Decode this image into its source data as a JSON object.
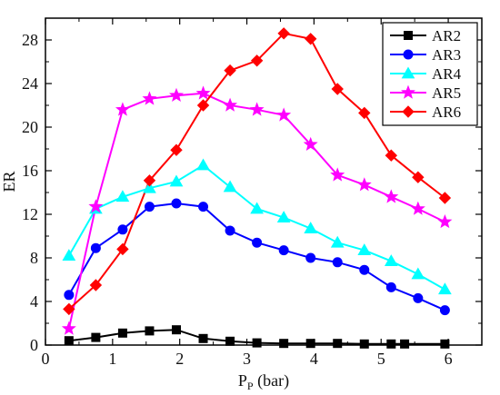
{
  "chart_data": {
    "type": "line",
    "title": "",
    "xlabel": "P",
    "xlabel_subscript": "P",
    "xlabel_unit": " (bar)",
    "ylabel": "ER",
    "xlim": [
      0,
      6.5
    ],
    "ylim": [
      0,
      30
    ],
    "x_ticks": [
      0,
      1,
      2,
      3,
      4,
      5,
      6
    ],
    "y_ticks": [
      0,
      4,
      8,
      12,
      16,
      20,
      24,
      28
    ],
    "grid": false,
    "legend_position": "top-right",
    "series": [
      {
        "name": "AR2",
        "color": "#000000",
        "marker": "square",
        "x": [
          0.35,
          0.75,
          1.15,
          1.55,
          1.95,
          2.35,
          2.75,
          3.15,
          3.55,
          3.95,
          4.35,
          4.75,
          5.15,
          5.35,
          5.95
        ],
        "y": [
          0.4,
          0.7,
          1.1,
          1.3,
          1.4,
          0.6,
          0.35,
          0.2,
          0.15,
          0.15,
          0.15,
          0.1,
          0.1,
          0.1,
          0.1
        ]
      },
      {
        "name": "AR3",
        "color": "#0000ff",
        "marker": "circle",
        "x": [
          0.35,
          0.75,
          1.15,
          1.55,
          1.95,
          2.35,
          2.75,
          3.15,
          3.55,
          3.95,
          4.35,
          4.75,
          5.15,
          5.55,
          5.95
        ],
        "y": [
          4.6,
          8.9,
          10.6,
          12.7,
          13.0,
          12.7,
          10.5,
          9.4,
          8.7,
          8.0,
          7.6,
          6.9,
          5.3,
          4.3,
          3.2
        ]
      },
      {
        "name": "AR4",
        "color": "#00ffff",
        "marker": "triangle",
        "x": [
          0.35,
          0.75,
          1.15,
          1.55,
          1.95,
          2.35,
          2.75,
          3.15,
          3.55,
          3.95,
          4.35,
          4.75,
          5.15,
          5.55,
          5.95
        ],
        "y": [
          8.2,
          12.5,
          13.6,
          14.4,
          15.0,
          16.5,
          14.5,
          12.5,
          11.7,
          10.7,
          9.4,
          8.7,
          7.7,
          6.5,
          5.1
        ]
      },
      {
        "name": "AR5",
        "color": "#ff00ff",
        "marker": "star",
        "x": [
          0.35,
          0.75,
          1.15,
          1.55,
          1.95,
          2.35,
          2.75,
          3.15,
          3.55,
          3.95,
          4.35,
          4.75,
          5.15,
          5.55,
          5.95
        ],
        "y": [
          1.5,
          12.7,
          21.6,
          22.6,
          22.9,
          23.1,
          22.0,
          21.6,
          21.1,
          18.4,
          15.6,
          14.7,
          13.6,
          12.5,
          11.3
        ]
      },
      {
        "name": "AR6",
        "color": "#ff0000",
        "marker": "diamond",
        "x": [
          0.35,
          0.75,
          1.15,
          1.55,
          1.95,
          2.35,
          2.75,
          3.15,
          3.55,
          3.95,
          4.35,
          4.75,
          5.15,
          5.55,
          5.95
        ],
        "y": [
          3.3,
          5.5,
          8.8,
          15.1,
          17.9,
          22.0,
          25.2,
          26.1,
          28.6,
          28.1,
          23.5,
          21.3,
          17.4,
          15.4,
          13.5
        ]
      }
    ]
  }
}
